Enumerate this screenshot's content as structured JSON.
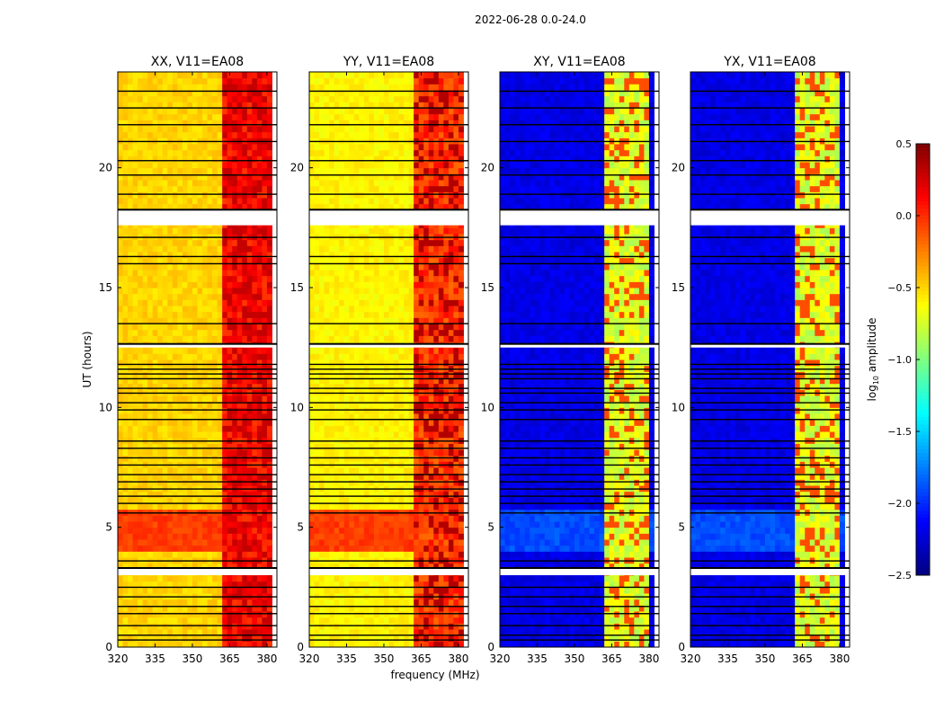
{
  "chart_data": {
    "type": "heatmap",
    "title": "2022-06-28 0.0-24.0",
    "xlabel": "frequency (MHz)",
    "ylabel": "UT (hours)",
    "xlim": [
      320,
      384
    ],
    "ylim": [
      0,
      24
    ],
    "xticks": [
      "320",
      "335",
      "350",
      "365",
      "380"
    ],
    "xtick_values": [
      320,
      335,
      350,
      365,
      380
    ],
    "yticks": [
      "0",
      "5",
      "10",
      "15",
      "20"
    ],
    "ytick_values": [
      0,
      5,
      10,
      15,
      20
    ],
    "colorbar": {
      "label": "log10 amplitude",
      "label_main": "log",
      "label_sub": "10",
      "label_rest": " amplitude",
      "range": [
        -2.5,
        0.5
      ],
      "ticks": [
        "0.5",
        "0.0",
        "−0.5",
        "−1.0",
        "−1.5",
        "−2.0",
        "−2.5"
      ],
      "tick_values": [
        0.5,
        0.0,
        -0.5,
        -1.0,
        -1.5,
        -2.0,
        -2.5
      ],
      "colormap": "jet"
    },
    "gap_ranges_hours": [
      [
        3.0,
        3.3
      ],
      [
        12.5,
        12.65
      ],
      [
        17.6,
        18.25
      ]
    ],
    "flag_lines_hours": [
      0.3,
      0.5,
      0.9,
      1.4,
      1.7,
      2.1,
      2.5,
      3.6,
      5.6,
      6.0,
      6.3,
      6.6,
      6.9,
      7.2,
      7.6,
      7.9,
      8.3,
      8.6,
      9.5,
      9.9,
      10.2,
      10.6,
      10.8,
      11.2,
      11.4,
      11.6,
      11.8,
      13.5,
      16.0,
      16.3,
      17.1,
      18.0,
      18.9,
      19.7,
      20.3,
      21.1,
      21.8,
      22.5,
      23.2
    ],
    "panels": [
      {
        "title": "XX, V11=EA08",
        "base": -0.5,
        "band_range_mhz": [
          362,
          381
        ],
        "band": 0.05,
        "band_peak": 0.3,
        "hot_hours": [
          3.8,
          5.6
        ],
        "hot_level": -0.05
      },
      {
        "title": "YY, V11=EA08",
        "base": -0.6,
        "band_range_mhz": [
          362,
          381
        ],
        "band": -0.1,
        "band_peak": 0.35,
        "hot_hours": [
          3.8,
          5.6
        ],
        "hot_level": -0.05
      },
      {
        "title": "XY, V11=EA08",
        "base": -2.2,
        "band_range_mhz": [
          362,
          380
        ],
        "band": -0.8,
        "band_peak": -0.1,
        "hot_hours": [
          3.8,
          5.6
        ],
        "hot_level": -1.9
      },
      {
        "title": "YX, V11=EA08",
        "base": -2.2,
        "band_range_mhz": [
          362,
          380
        ],
        "band": -0.8,
        "band_peak": -0.1,
        "hot_hours": [
          3.8,
          5.6
        ],
        "hot_level": -1.9
      }
    ]
  }
}
